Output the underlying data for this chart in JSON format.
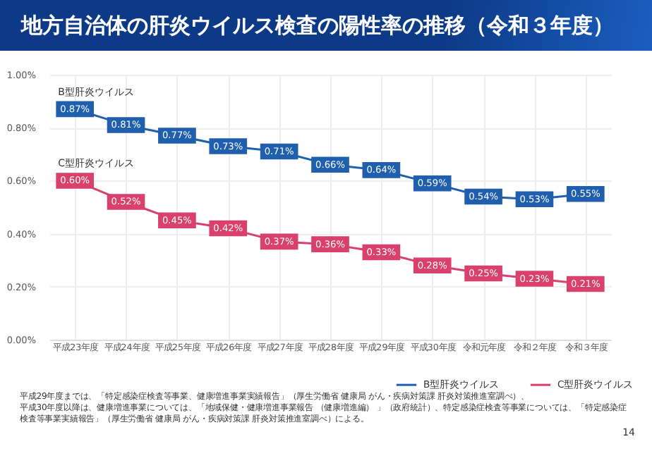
{
  "chart_data": {
    "type": "line",
    "title": "地方自治体の肝炎ウイルス検査の陽性率の推移（令和３年度）",
    "categories": [
      "平成23年度",
      "平成24年度",
      "平成25年度",
      "平成26年度",
      "平成27年度",
      "平成28年度",
      "平成29年度",
      "平成30年度",
      "令和元年度",
      "令和２年度",
      "令和３年度"
    ],
    "series": [
      {
        "name": "B型肝炎ウイルス",
        "color": "#1f5fae",
        "values": [
          0.87,
          0.81,
          0.77,
          0.73,
          0.71,
          0.66,
          0.64,
          0.59,
          0.54,
          0.53,
          0.55
        ],
        "value_labels": [
          "0.87%",
          "0.81%",
          "0.77%",
          "0.73%",
          "0.71%",
          "0.66%",
          "0.64%",
          "0.59%",
          "0.54%",
          "0.53%",
          "0.55%"
        ]
      },
      {
        "name": "C型肝炎ウイルス",
        "color": "#d9416c",
        "values": [
          0.6,
          0.52,
          0.45,
          0.42,
          0.37,
          0.36,
          0.33,
          0.28,
          0.25,
          0.23,
          0.21
        ],
        "value_labels": [
          "0.60%",
          "0.52%",
          "0.45%",
          "0.42%",
          "0.37%",
          "0.36%",
          "0.33%",
          "0.28%",
          "0.25%",
          "0.23%",
          "0.21%"
        ]
      }
    ],
    "ylim": [
      0,
      1
    ],
    "yticks": [
      {
        "value": 0,
        "label": "0.00%"
      },
      {
        "value": 0.2,
        "label": "0.20%"
      },
      {
        "value": 0.4,
        "label": "0.40%"
      },
      {
        "value": 0.6,
        "label": "0.60%"
      },
      {
        "value": 0.8,
        "label": "0.80%"
      },
      {
        "value": 1,
        "label": "1.00%"
      }
    ],
    "grid": true,
    "legend": "bottom right",
    "marker": "square",
    "line_style": "solid",
    "annotations": [
      "平成29年度までは、「特定感染症検査等事業、健康増進事業実績報告」（厚生労働省 健康局 がん・疾病対策課 肝炎対策推進室調べ）、",
      "平成30年度以降は、健康増進事業については、「地域保健・健康増進事業報告 （健康増進編） 」（政府統計）、特定感染症検査等事業については、「特定感染症",
      "検査等事業実績報告」（厚生労働省 健康局 がん・疾病対策課 肝炎対策推進室調べ）による。",
      "14"
    ]
  }
}
